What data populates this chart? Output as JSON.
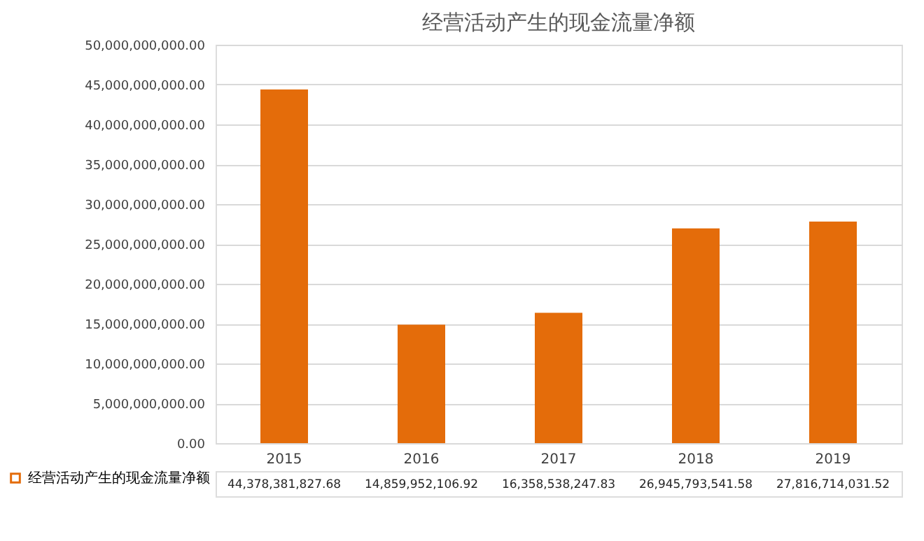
{
  "chart_data": {
    "type": "bar",
    "title": "经营活动产生的现金流量净额",
    "categories": [
      "2015",
      "2016",
      "2017",
      "2018",
      "2019"
    ],
    "series": [
      {
        "name": "经营活动产生的现金流量净额",
        "color": "#e46c0a",
        "values": [
          44378381827.68,
          14859952106.92,
          16358538247.83,
          26945793541.58,
          27816714031.52
        ],
        "value_labels": [
          "44,378,381,827.68",
          "14,859,952,106.92",
          "16,358,538,247.83",
          "26,945,793,541.58",
          "27,816,714,031.52"
        ]
      }
    ],
    "ylim": [
      0,
      50000000000
    ],
    "yticks": [
      {
        "value": 0,
        "label": "0.00"
      },
      {
        "value": 5000000000,
        "label": "5,000,000,000.00"
      },
      {
        "value": 10000000000,
        "label": "10,000,000,000.00"
      },
      {
        "value": 15000000000,
        "label": "15,000,000,000.00"
      },
      {
        "value": 20000000000,
        "label": "20,000,000,000.00"
      },
      {
        "value": 25000000000,
        "label": "25,000,000,000.00"
      },
      {
        "value": 30000000000,
        "label": "30,000,000,000.00"
      },
      {
        "value": 35000000000,
        "label": "35,000,000,000.00"
      },
      {
        "value": 40000000000,
        "label": "40,000,000,000.00"
      },
      {
        "value": 45000000000,
        "label": "45,000,000,000.00"
      },
      {
        "value": 50000000000,
        "label": "50,000,000,000.00"
      }
    ],
    "grid": "y",
    "legend": "bottom"
  }
}
